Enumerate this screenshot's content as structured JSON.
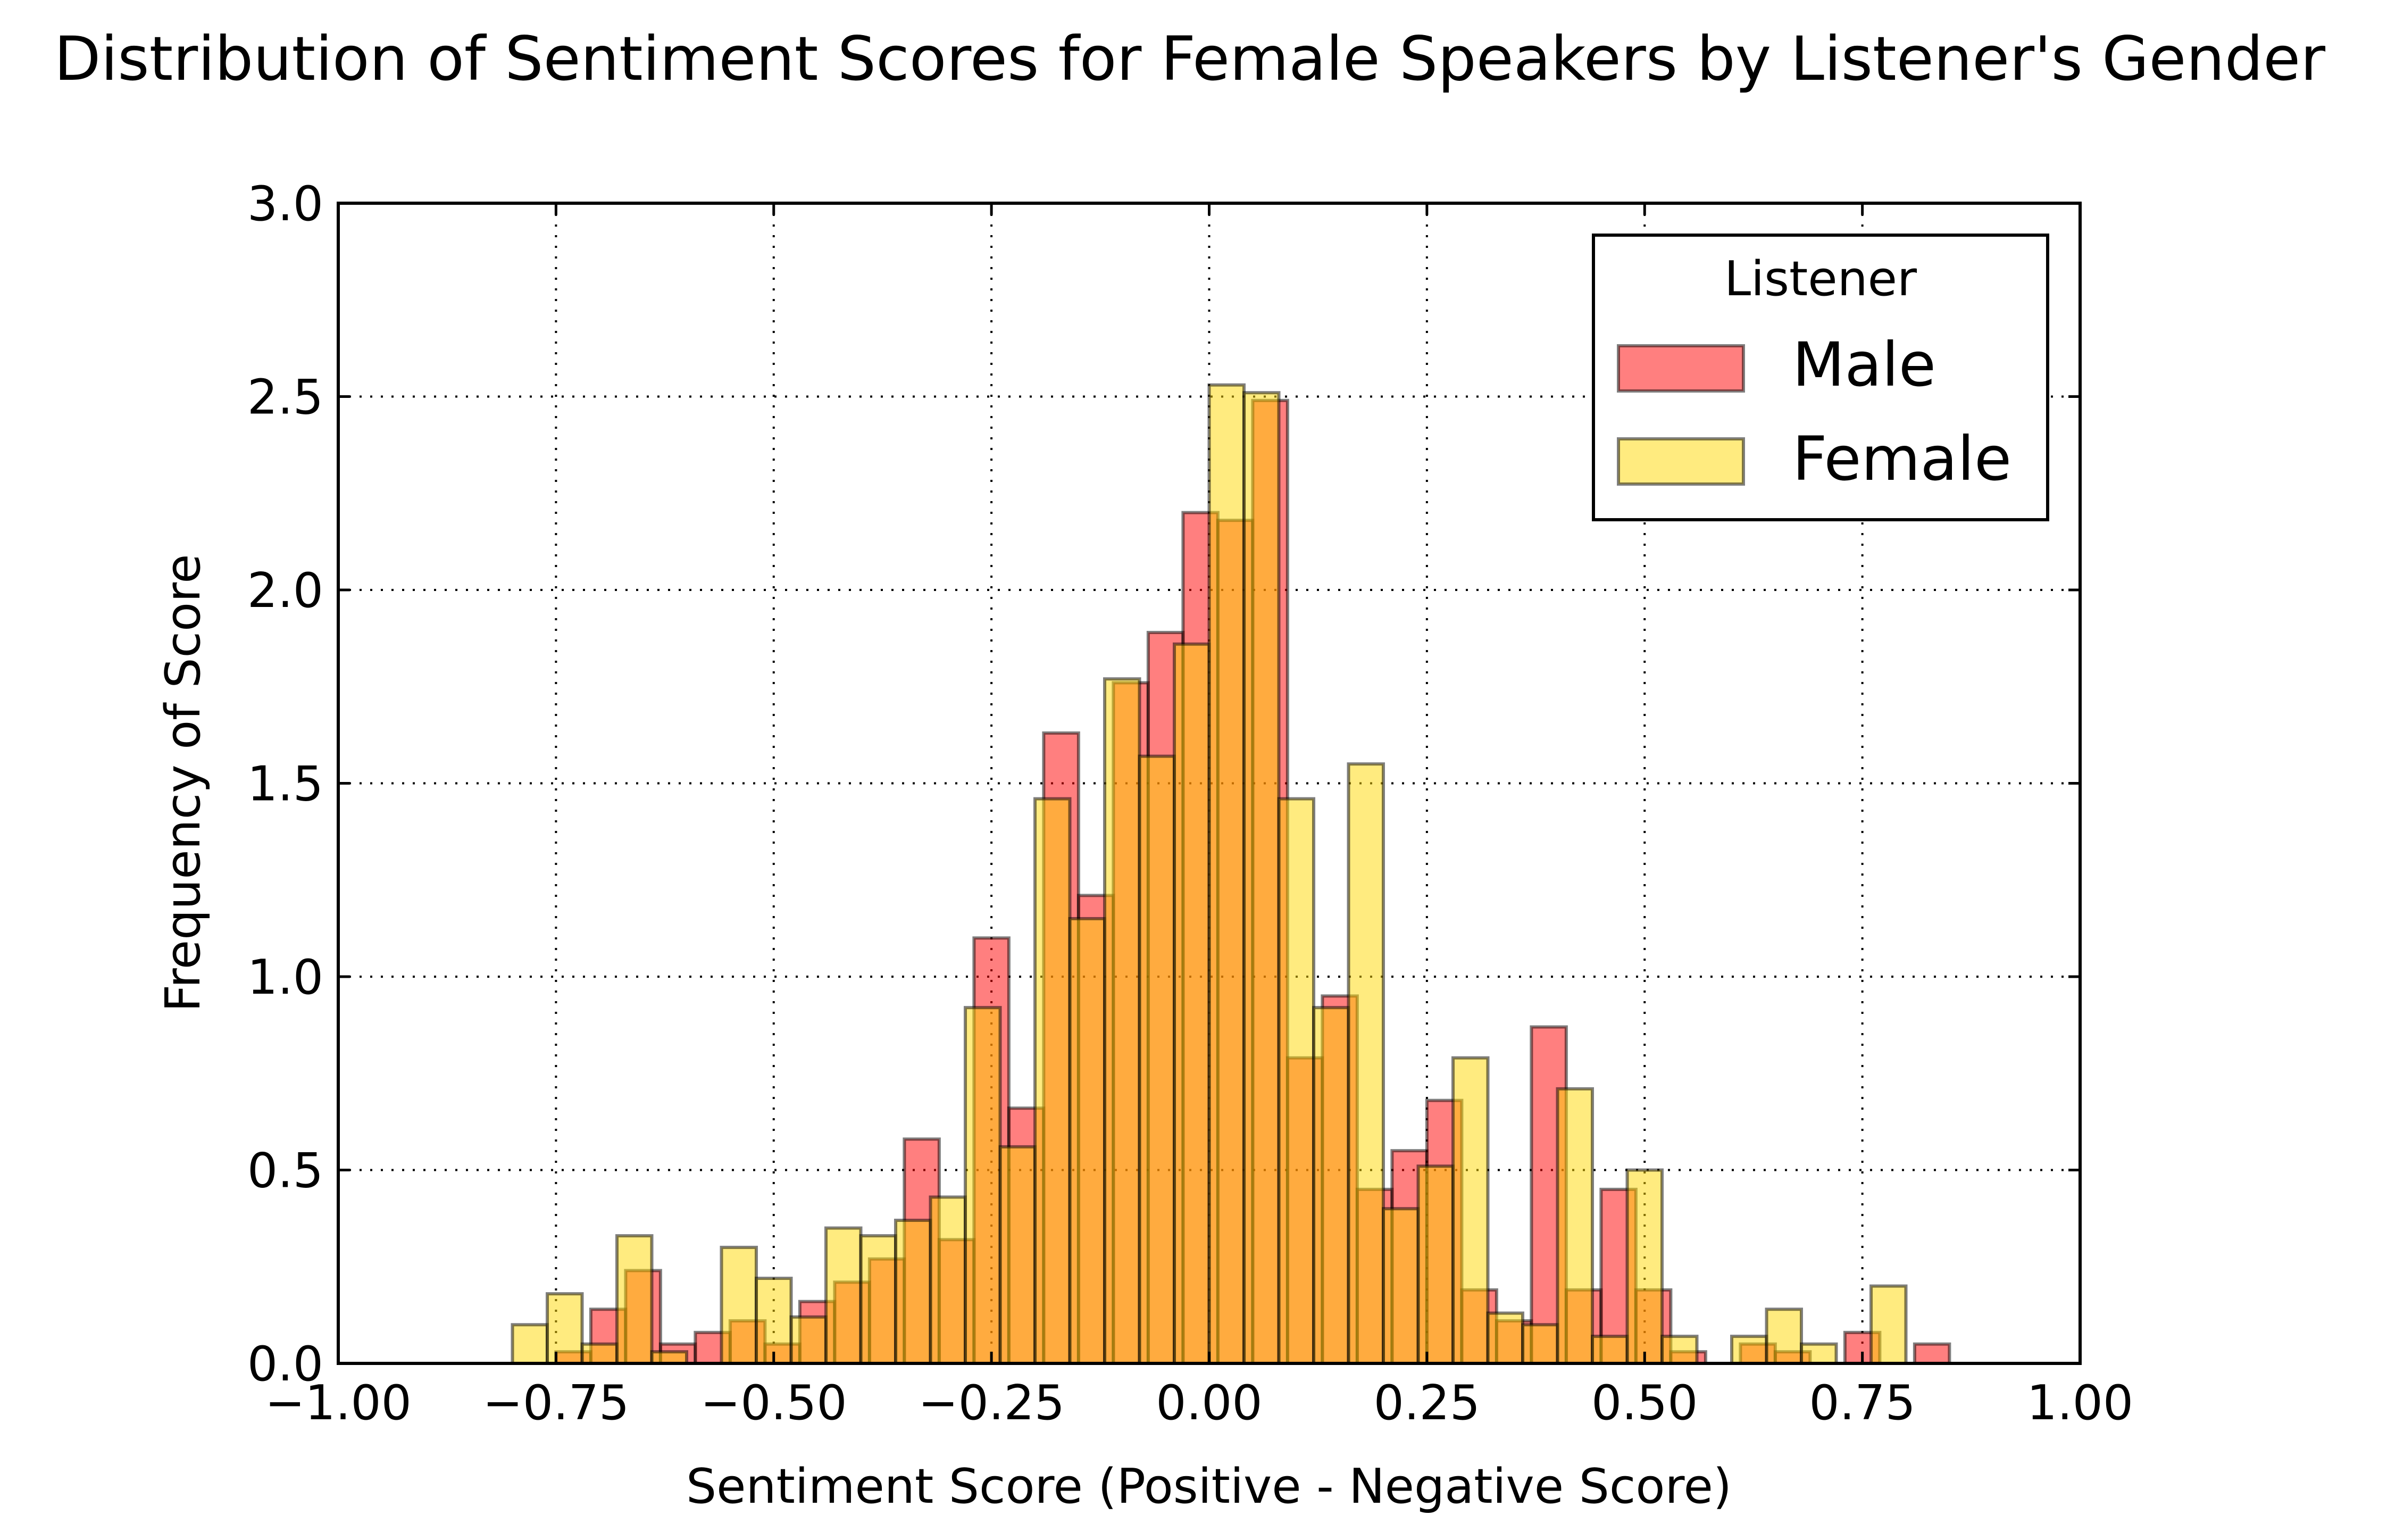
{
  "chart_data": {
    "type": "bar",
    "title": "Distribution of Sentiment Scores for Female Speakers by Listener's Gender",
    "xlabel": "Sentiment Score (Positive - Negative Score)",
    "ylabel": "Frequency of Score",
    "xlim": [
      -1.0,
      1.0
    ],
    "ylim": [
      0.0,
      3.0
    ],
    "xticks": [
      -1.0,
      -0.75,
      -0.5,
      -0.25,
      0.0,
      0.25,
      0.5,
      0.75,
      1.0
    ],
    "xtick_labels": [
      "−1.00",
      "−0.75",
      "−0.50",
      "−0.25",
      "0.00",
      "0.25",
      "0.50",
      "0.75",
      "1.00"
    ],
    "yticks": [
      0.0,
      0.5,
      1.0,
      1.5,
      2.0,
      2.5,
      3.0
    ],
    "ytick_labels": [
      "0.0",
      "0.5",
      "1.0",
      "1.5",
      "2.0",
      "2.5",
      "3.0"
    ],
    "grid": true,
    "legend": {
      "title": "Listener",
      "placement": "top-right"
    },
    "bin_width": 0.04,
    "series": [
      {
        "name": "Male",
        "color": "#ff0000",
        "opacity": 0.5,
        "bins": [
          {
            "x": -0.75,
            "y": 0.03
          },
          {
            "x": -0.71,
            "y": 0.14
          },
          {
            "x": -0.67,
            "y": 0.24
          },
          {
            "x": -0.63,
            "y": 0.05
          },
          {
            "x": -0.59,
            "y": 0.08
          },
          {
            "x": -0.55,
            "y": 0.11
          },
          {
            "x": -0.51,
            "y": 0.05
          },
          {
            "x": -0.47,
            "y": 0.16
          },
          {
            "x": -0.43,
            "y": 0.21
          },
          {
            "x": -0.39,
            "y": 0.27
          },
          {
            "x": -0.35,
            "y": 0.58
          },
          {
            "x": -0.31,
            "y": 0.32
          },
          {
            "x": -0.27,
            "y": 1.1
          },
          {
            "x": -0.23,
            "y": 0.66
          },
          {
            "x": -0.19,
            "y": 1.63
          },
          {
            "x": -0.15,
            "y": 1.21
          },
          {
            "x": -0.11,
            "y": 1.76
          },
          {
            "x": -0.07,
            "y": 1.89
          },
          {
            "x": -0.03,
            "y": 2.2
          },
          {
            "x": 0.01,
            "y": 2.18
          },
          {
            "x": 0.05,
            "y": 2.49
          },
          {
            "x": 0.09,
            "y": 0.79
          },
          {
            "x": 0.13,
            "y": 0.95
          },
          {
            "x": 0.17,
            "y": 0.45
          },
          {
            "x": 0.21,
            "y": 0.55
          },
          {
            "x": 0.25,
            "y": 0.68
          },
          {
            "x": 0.29,
            "y": 0.19
          },
          {
            "x": 0.33,
            "y": 0.11
          },
          {
            "x": 0.37,
            "y": 0.87
          },
          {
            "x": 0.41,
            "y": 0.19
          },
          {
            "x": 0.45,
            "y": 0.45
          },
          {
            "x": 0.49,
            "y": 0.19
          },
          {
            "x": 0.53,
            "y": 0.03
          },
          {
            "x": 0.57,
            "y": 0.0
          },
          {
            "x": 0.61,
            "y": 0.05
          },
          {
            "x": 0.65,
            "y": 0.03
          },
          {
            "x": 0.69,
            "y": 0.0
          },
          {
            "x": 0.73,
            "y": 0.08
          },
          {
            "x": 0.77,
            "y": 0.0
          },
          {
            "x": 0.81,
            "y": 0.05
          }
        ]
      },
      {
        "name": "Female",
        "color": "#ffd700",
        "opacity": 0.5,
        "bins": [
          {
            "x": -0.8,
            "y": 0.1
          },
          {
            "x": -0.76,
            "y": 0.18
          },
          {
            "x": -0.72,
            "y": 0.05
          },
          {
            "x": -0.68,
            "y": 0.33
          },
          {
            "x": -0.64,
            "y": 0.03
          },
          {
            "x": -0.6,
            "y": 0.0
          },
          {
            "x": -0.56,
            "y": 0.3
          },
          {
            "x": -0.52,
            "y": 0.22
          },
          {
            "x": -0.48,
            "y": 0.12
          },
          {
            "x": -0.44,
            "y": 0.35
          },
          {
            "x": -0.4,
            "y": 0.33
          },
          {
            "x": -0.36,
            "y": 0.37
          },
          {
            "x": -0.32,
            "y": 0.43
          },
          {
            "x": -0.28,
            "y": 0.92
          },
          {
            "x": -0.24,
            "y": 0.56
          },
          {
            "x": -0.2,
            "y": 1.46
          },
          {
            "x": -0.16,
            "y": 1.15
          },
          {
            "x": -0.12,
            "y": 1.77
          },
          {
            "x": -0.08,
            "y": 1.57
          },
          {
            "x": -0.04,
            "y": 1.86
          },
          {
            "x": 0.0,
            "y": 2.53
          },
          {
            "x": 0.04,
            "y": 2.51
          },
          {
            "x": 0.08,
            "y": 1.46
          },
          {
            "x": 0.12,
            "y": 0.92
          },
          {
            "x": 0.16,
            "y": 1.55
          },
          {
            "x": 0.2,
            "y": 0.4
          },
          {
            "x": 0.24,
            "y": 0.51
          },
          {
            "x": 0.28,
            "y": 0.79
          },
          {
            "x": 0.32,
            "y": 0.13
          },
          {
            "x": 0.36,
            "y": 0.1
          },
          {
            "x": 0.4,
            "y": 0.71
          },
          {
            "x": 0.44,
            "y": 0.07
          },
          {
            "x": 0.48,
            "y": 0.5
          },
          {
            "x": 0.52,
            "y": 0.07
          },
          {
            "x": 0.56,
            "y": 0.0
          },
          {
            "x": 0.6,
            "y": 0.07
          },
          {
            "x": 0.64,
            "y": 0.14
          },
          {
            "x": 0.68,
            "y": 0.05
          },
          {
            "x": 0.72,
            "y": 0.0
          },
          {
            "x": 0.76,
            "y": 0.2
          }
        ]
      }
    ]
  }
}
